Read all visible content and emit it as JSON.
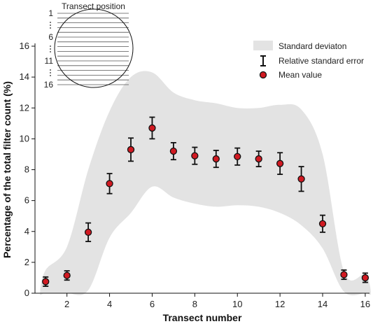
{
  "chart_data": {
    "type": "scatter",
    "xlabel": "Transect number",
    "ylabel": "Percentage of the total filter count (%)",
    "xlim": [
      0.5,
      16.2
    ],
    "ylim": [
      0,
      16
    ],
    "x_ticks": [
      "2",
      "4",
      "6",
      "8",
      "10",
      "12",
      "14",
      "16"
    ],
    "y_ticks": [
      "0",
      "2",
      "4",
      "6",
      "8",
      "10",
      "12",
      "14",
      "16"
    ],
    "legend": {
      "placement": "top-right",
      "items": [
        "Standard deviaton",
        "Relative standard error",
        "Mean value"
      ]
    },
    "series": [
      {
        "name": "Mean value",
        "x": [
          1,
          2,
          3,
          4,
          5,
          6,
          7,
          8,
          9,
          10,
          11,
          12,
          13,
          14,
          15,
          16
        ],
        "y": [
          0.75,
          1.15,
          3.95,
          7.1,
          9.3,
          10.7,
          9.2,
          8.9,
          8.7,
          8.85,
          8.7,
          8.4,
          7.4,
          4.5,
          1.2,
          1.0
        ],
        "error": [
          0.3,
          0.3,
          0.6,
          0.65,
          0.75,
          0.7,
          0.55,
          0.55,
          0.55,
          0.55,
          0.5,
          0.7,
          0.8,
          0.55,
          0.3,
          0.3
        ]
      }
    ],
    "std_band": {
      "x": [
        1,
        2,
        3,
        4,
        5,
        6,
        7,
        8,
        9,
        10,
        11,
        12,
        13,
        14,
        15,
        16
      ],
      "upper": [
        1.5,
        3.0,
        8.0,
        11.8,
        14.0,
        14.3,
        13.0,
        12.5,
        12.3,
        12.0,
        12.0,
        12.2,
        11.9,
        9.0,
        1.4,
        1.2
      ],
      "lower": [
        0.0,
        0.0,
        0.2,
        3.6,
        5.2,
        6.9,
        6.2,
        5.8,
        5.6,
        5.7,
        5.6,
        5.2,
        4.4,
        2.9,
        0.1,
        0.0
      ]
    },
    "colors": {
      "band": "#e3e3e3",
      "marker": "#d11a22",
      "marker_edge": "#111111",
      "error_bar": "#111111"
    }
  },
  "inset": {
    "title": "Transect position",
    "labels": [
      "1",
      "6",
      "11",
      "16"
    ],
    "line_count": 16
  }
}
